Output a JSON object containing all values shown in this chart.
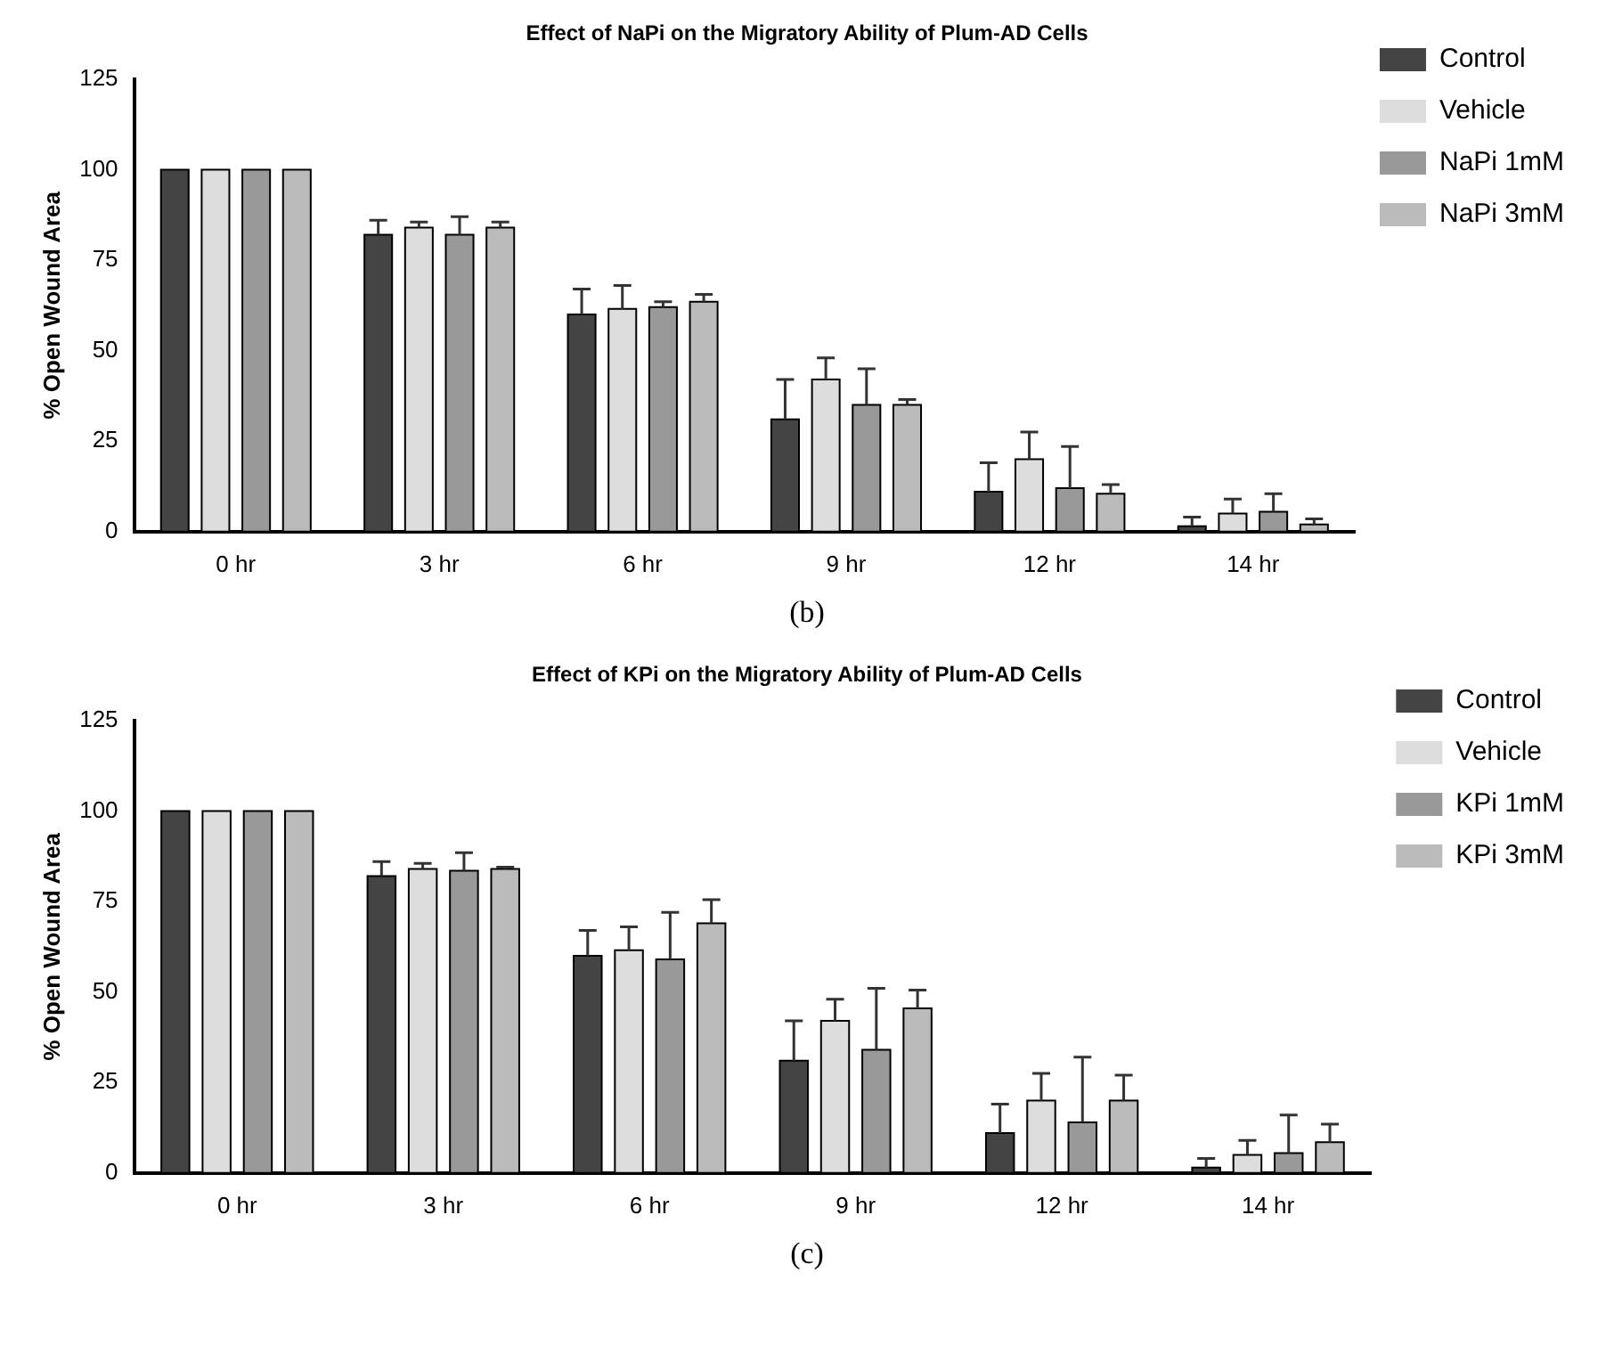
{
  "chart_data": [
    {
      "type": "bar",
      "title": "Effect of NaPi on the Migratory Ability of Plum-AD Cells",
      "ylabel": "% Open Wound Area",
      "categories": [
        "0 hr",
        "3 hr",
        "6 hr",
        "9 hr",
        "12 hr",
        "14 hr"
      ],
      "series": [
        {
          "name": "Control",
          "color": "#444444",
          "values": [
            100,
            82,
            60,
            31,
            11,
            1.5
          ],
          "errors": [
            null,
            [
              82,
              86
            ],
            [
              60,
              67
            ],
            [
              31,
              42
            ],
            [
              11,
              19
            ],
            [
              1.5,
              4
            ]
          ]
        },
        {
          "name": "Vehicle",
          "color": "#dddddd",
          "values": [
            100,
            84,
            61.5,
            42,
            20,
            5
          ],
          "errors": [
            null,
            [
              84,
              85.5
            ],
            [
              61.5,
              68
            ],
            [
              42,
              48
            ],
            [
              20,
              27.5
            ],
            [
              5,
              9
            ]
          ]
        },
        {
          "name": "NaPi 1mM",
          "color": "#999999",
          "values": [
            100,
            82,
            62,
            35,
            12,
            5.5
          ],
          "errors": [
            null,
            [
              82,
              87
            ],
            [
              62,
              63.5
            ],
            [
              35,
              45
            ],
            [
              12,
              23.5
            ],
            [
              5.5,
              10.5
            ]
          ]
        },
        {
          "name": "NaPi 3mM",
          "color": "#bbbbbb",
          "values": [
            100,
            84,
            63.5,
            35,
            10.5,
            2
          ],
          "errors": [
            null,
            [
              84,
              85.5
            ],
            [
              63.5,
              65.5
            ],
            [
              35,
              36.5
            ],
            [
              10.5,
              13
            ],
            [
              2,
              3.5
            ]
          ]
        }
      ],
      "ylim": [
        0,
        125
      ],
      "yticks": [
        0,
        25,
        50,
        75,
        100,
        125
      ],
      "grid": false,
      "legend": "top right",
      "annotations": [
        "(b)"
      ]
    },
    {
      "type": "bar",
      "title": "Effect of KPi on the Migratory Ability of Plum-AD Cells",
      "ylabel": "% Open Wound Area",
      "categories": [
        "0 hr",
        "3 hr",
        "6 hr",
        "9 hr",
        "12 hr",
        "14 hr"
      ],
      "series": [
        {
          "name": "Control",
          "color": "#444444",
          "values": [
            100,
            82,
            60,
            31,
            11,
            1.5
          ],
          "errors": [
            null,
            [
              82,
              86
            ],
            [
              60,
              67
            ],
            [
              31,
              42
            ],
            [
              11,
              19
            ],
            [
              1.5,
              4
            ]
          ]
        },
        {
          "name": "Vehicle",
          "color": "#dddddd",
          "values": [
            100,
            84,
            61.5,
            42,
            20,
            5
          ],
          "errors": [
            null,
            [
              84,
              85.5
            ],
            [
              61.5,
              68
            ],
            [
              42,
              48
            ],
            [
              20,
              27.5
            ],
            [
              5,
              9
            ]
          ]
        },
        {
          "name": "KPi 1mM",
          "color": "#999999",
          "values": [
            100,
            83.5,
            59,
            34,
            14,
            5.5
          ],
          "errors": [
            null,
            [
              83.5,
              88.5
            ],
            [
              59,
              72
            ],
            [
              34,
              51
            ],
            [
              14,
              32
            ],
            [
              5.5,
              16
            ]
          ]
        },
        {
          "name": "KPi 3mM",
          "color": "#bbbbbb",
          "values": [
            100,
            84,
            69,
            45.5,
            20,
            8.5
          ],
          "errors": [
            null,
            [
              84,
              84.5
            ],
            [
              69,
              75.5
            ],
            [
              45.5,
              50.5
            ],
            [
              20,
              27
            ],
            [
              8.5,
              13.5
            ]
          ]
        }
      ],
      "ylim": [
        0,
        125
      ],
      "yticks": [
        0,
        25,
        50,
        75,
        100,
        125
      ],
      "grid": false,
      "legend": "top right",
      "annotations": [
        "(c)"
      ]
    }
  ]
}
